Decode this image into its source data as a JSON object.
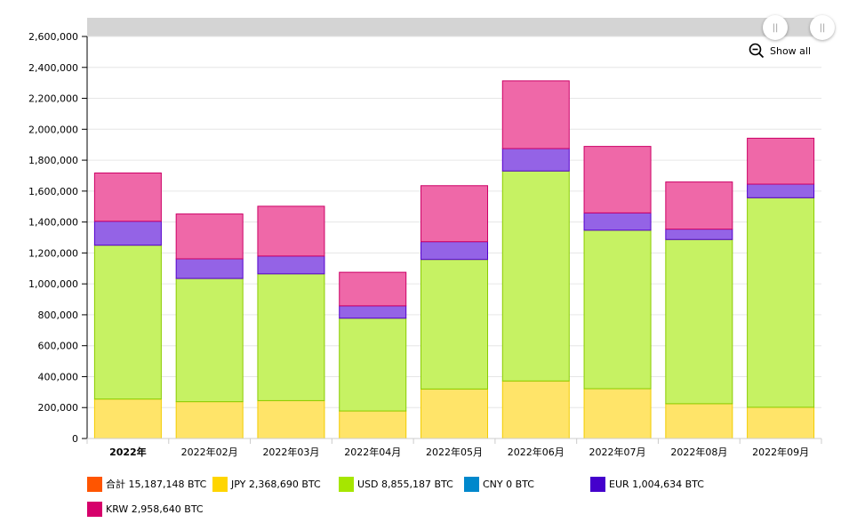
{
  "chart_data": {
    "type": "bar",
    "stacked": true,
    "categories": [
      "2022年",
      "2022年02月",
      "2022年03月",
      "2022年04月",
      "2022年05月",
      "2022年06月",
      "2022年07月",
      "2022年08月",
      "2022年09月"
    ],
    "highlighted_category": "2022年",
    "ylim": [
      0,
      2600000
    ],
    "yticks": [
      0,
      200000,
      400000,
      600000,
      800000,
      1000000,
      1200000,
      1400000,
      1600000,
      1800000,
      2000000,
      2200000,
      2400000,
      2600000
    ],
    "ytick_labels": [
      "0",
      "200,000",
      "400,000",
      "600,000",
      "800,000",
      "1,000,000",
      "1,200,000",
      "1,400,000",
      "1,600,000",
      "1,800,000",
      "2,000,000",
      "2,200,000",
      "2,400,000",
      "2,600,000"
    ],
    "grid": true,
    "series": [
      {
        "name": "JPY",
        "color": "#ffe469",
        "stroke": "#f2cc00",
        "values": [
          255000,
          238000,
          245000,
          178000,
          320000,
          372000,
          322000,
          225000,
          202000
        ]
      },
      {
        "name": "USD",
        "color": "#c6f263",
        "stroke": "#8bcc00",
        "values": [
          995000,
          797000,
          820000,
          600000,
          838000,
          1358000,
          1025000,
          1062000,
          1355000
        ]
      },
      {
        "name": "EUR",
        "color": "#9463e6",
        "stroke": "#5500cc",
        "values": [
          155000,
          127000,
          115000,
          80000,
          115000,
          145000,
          112000,
          67000,
          88000
        ]
      },
      {
        "name": "KRW",
        "color": "#ef68a8",
        "stroke": "#cc0066",
        "values": [
          312000,
          290000,
          322000,
          217000,
          362000,
          438000,
          430000,
          305000,
          297000
        ]
      }
    ],
    "legend": [
      {
        "label": "合計",
        "value": "15,187,148 BTC",
        "color": "#ff5500"
      },
      {
        "label": "JPY",
        "value": "2,368,690 BTC",
        "color": "#ffd500"
      },
      {
        "label": "USD",
        "value": "8,855,187 BTC",
        "color": "#a6e600"
      },
      {
        "label": "CNY",
        "value": "0 BTC",
        "color": "#0088cc"
      },
      {
        "label": "EUR",
        "value": "1,004,634 BTC",
        "color": "#4400cc"
      },
      {
        "label": "KRW",
        "value": "2,958,640 BTC",
        "color": "#d6006b"
      }
    ]
  },
  "controls": {
    "show_all_label": "Show all",
    "handle_glyph": "||"
  }
}
